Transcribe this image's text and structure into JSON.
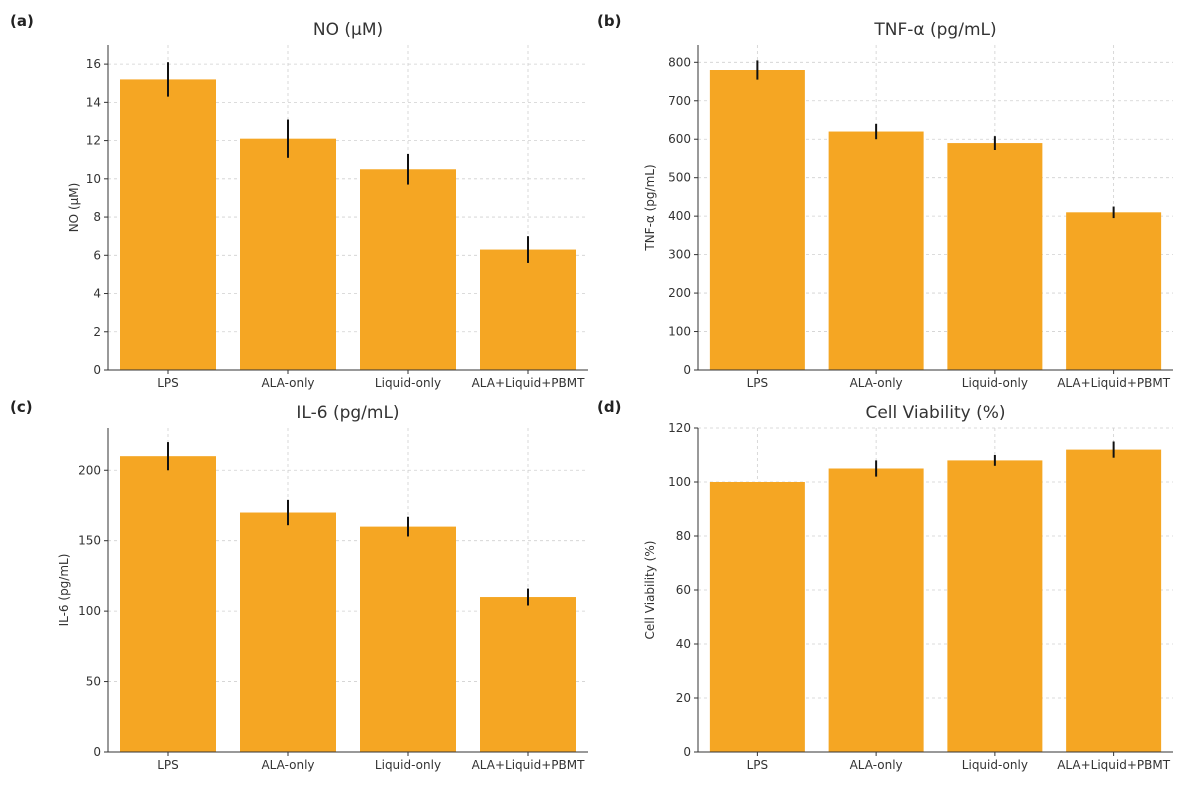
{
  "figure": {
    "bar_color": "#F5A623",
    "error_color": "#111111"
  },
  "chart_data": [
    {
      "type": "bar",
      "panel_label": "(a)",
      "title": "NO (µM)",
      "xlabel": "",
      "ylabel": "NO (µM)",
      "categories": [
        "LPS",
        "ALA-only",
        "Liquid-only",
        "ALA+Liquid+PBMT"
      ],
      "values": [
        15.2,
        12.1,
        10.5,
        6.3
      ],
      "errors": [
        0.9,
        1.0,
        0.8,
        0.7
      ],
      "ylim": [
        0,
        17
      ],
      "yticks": [
        0,
        2,
        4,
        6,
        8,
        10,
        12,
        14,
        16
      ],
      "grid": true
    },
    {
      "type": "bar",
      "panel_label": "(b)",
      "title": "TNF-α (pg/mL)",
      "xlabel": "",
      "ylabel": "TNF-α (pg/mL)",
      "categories": [
        "LPS",
        "ALA-only",
        "Liquid-only",
        "ALA+Liquid+PBMT"
      ],
      "values": [
        780,
        620,
        590,
        410
      ],
      "errors": [
        25,
        20,
        18,
        15
      ],
      "ylim": [
        0,
        845
      ],
      "yticks": [
        0,
        100,
        200,
        300,
        400,
        500,
        600,
        700,
        800
      ],
      "grid": true
    },
    {
      "type": "bar",
      "panel_label": "(c)",
      "title": "IL-6 (pg/mL)",
      "xlabel": "",
      "ylabel": "IL-6 (pg/mL)",
      "categories": [
        "LPS",
        "ALA-only",
        "Liquid-only",
        "ALA+Liquid+PBMT"
      ],
      "values": [
        210,
        170,
        160,
        110
      ],
      "errors": [
        10,
        9,
        7,
        6
      ],
      "ylim": [
        0,
        230
      ],
      "yticks": [
        0,
        50,
        100,
        150,
        200
      ],
      "grid": true
    },
    {
      "type": "bar",
      "panel_label": "(d)",
      "title": "Cell Viability (%)",
      "xlabel": "",
      "ylabel": "Cell Viability (%)",
      "categories": [
        "LPS",
        "ALA-only",
        "Liquid-only",
        "ALA+Liquid+PBMT"
      ],
      "values": [
        100,
        105,
        108,
        112
      ],
      "errors": [
        0,
        3,
        2,
        3
      ],
      "ylim": [
        0,
        120
      ],
      "yticks": [
        0,
        20,
        40,
        60,
        80,
        100,
        120
      ],
      "grid": true
    }
  ]
}
